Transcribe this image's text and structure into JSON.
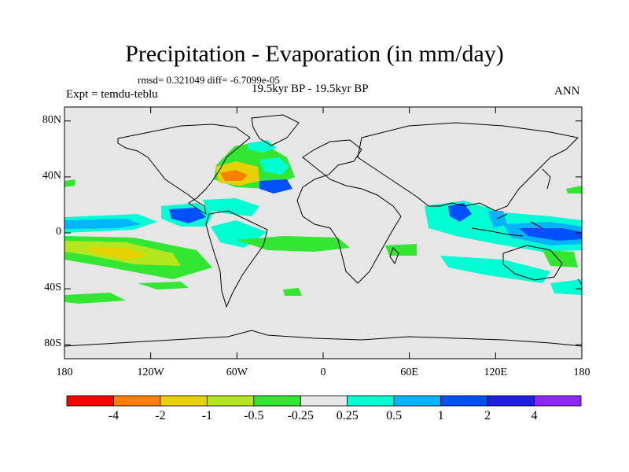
{
  "title": "Precipitation - Evaporation (in mm/day)",
  "stats": "rmsd= 0.321049 diff= -6.7099e-05",
  "experiment": "Expt = temdu-teblu",
  "period": "19.5kyr BP - 19.5kyr BP",
  "season": "ANN",
  "map": {
    "ocean_color": "#e6e6e6",
    "coast_color": "#000000",
    "y_ticks": [
      {
        "label": "80N",
        "lat": 80
      },
      {
        "label": "40N",
        "lat": 40
      },
      {
        "label": "0",
        "lat": 0
      },
      {
        "label": "40S",
        "lat": -40
      },
      {
        "label": "80S",
        "lat": -80
      }
    ],
    "x_ticks": [
      {
        "label": "180",
        "lon": -180
      },
      {
        "label": "120W",
        "lon": -120
      },
      {
        "label": "60W",
        "lon": -60
      },
      {
        "label": "0",
        "lon": 0
      },
      {
        "label": "60E",
        "lon": 60
      },
      {
        "label": "120E",
        "lon": 120
      },
      {
        "label": "180",
        "lon": 180
      }
    ]
  },
  "colorbar": {
    "colors": [
      "#ff0000",
      "#ff8000",
      "#e6d200",
      "#b4e61e",
      "#32e632",
      "#e6e6e6",
      "#00ffd2",
      "#00b4ff",
      "#0050ff",
      "#1e1ee6",
      "#8c28ff"
    ],
    "labels": [
      "-4",
      "-2",
      "-1",
      "-0.5",
      "-0.25",
      "0.25",
      "0.5",
      "1",
      "2",
      "4"
    ]
  }
}
